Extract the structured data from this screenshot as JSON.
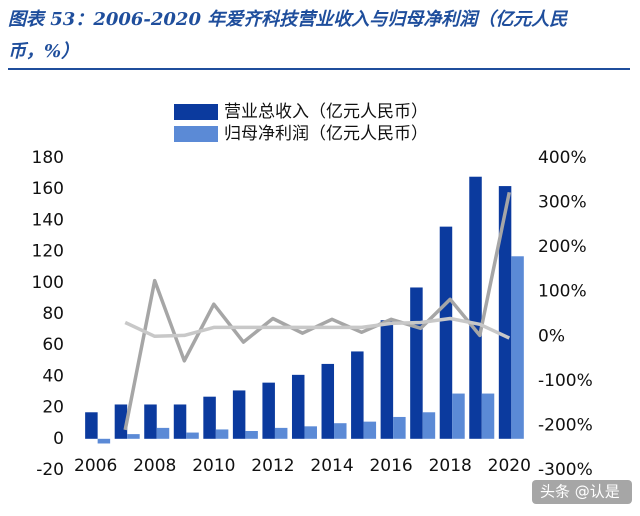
{
  "chart_data": {
    "type": "bar",
    "title": "图表 53：2006-2020 年爱齐科技营业收入与归母净利润（亿元人民币，%）",
    "x": [
      2006,
      2007,
      2008,
      2009,
      2010,
      2011,
      2012,
      2013,
      2014,
      2015,
      2016,
      2017,
      2018,
      2019,
      2020
    ],
    "xlim": [
      2005.2,
      2020.7
    ],
    "xticks": [
      2006,
      2008,
      2010,
      2012,
      2014,
      2016,
      2018,
      2020
    ],
    "ylim": [
      -20,
      180
    ],
    "yticks": [
      -20,
      0,
      20,
      40,
      60,
      80,
      100,
      120,
      140,
      160,
      180
    ],
    "y2lim": [
      -300,
      400
    ],
    "y2ticks": [
      {
        "value": -300,
        "label": "-300%"
      },
      {
        "value": -200,
        "label": "-200%"
      },
      {
        "value": -100,
        "label": "-100%"
      },
      {
        "value": 0,
        "label": "0%"
      },
      {
        "value": 100,
        "label": "100%"
      },
      {
        "value": 200,
        "label": "200%"
      },
      {
        "value": 300,
        "label": "300%"
      },
      {
        "value": 400,
        "label": "400%"
      }
    ],
    "series": [
      {
        "name": "营业总收入（亿元人民币）",
        "color": "#0b3a9e",
        "values": [
          17,
          22,
          22,
          22,
          27,
          31,
          36,
          41,
          48,
          56,
          76,
          97,
          136,
          168,
          162
        ]
      },
      {
        "name": "归母净利润（亿元人民币）",
        "color": "#5b8ad6",
        "values": [
          -3,
          3,
          7,
          4,
          6,
          5,
          7,
          8,
          10,
          11,
          14,
          17,
          29,
          29,
          117
        ]
      },
      {
        "type": "line",
        "axis": "y2",
        "color": "#a6a6a6",
        "values": [
          null,
          -210,
          125,
          -55,
          72,
          -13,
          40,
          7,
          38,
          9,
          38,
          18,
          83,
          2,
          323
        ]
      },
      {
        "type": "line",
        "axis": "y2",
        "color": "#c8c8c8",
        "values": [
          null,
          31,
          0,
          2,
          20,
          20,
          20,
          20,
          20,
          20,
          29,
          31,
          40,
          27,
          -4
        ]
      }
    ]
  },
  "watermark": "头条 @认是"
}
